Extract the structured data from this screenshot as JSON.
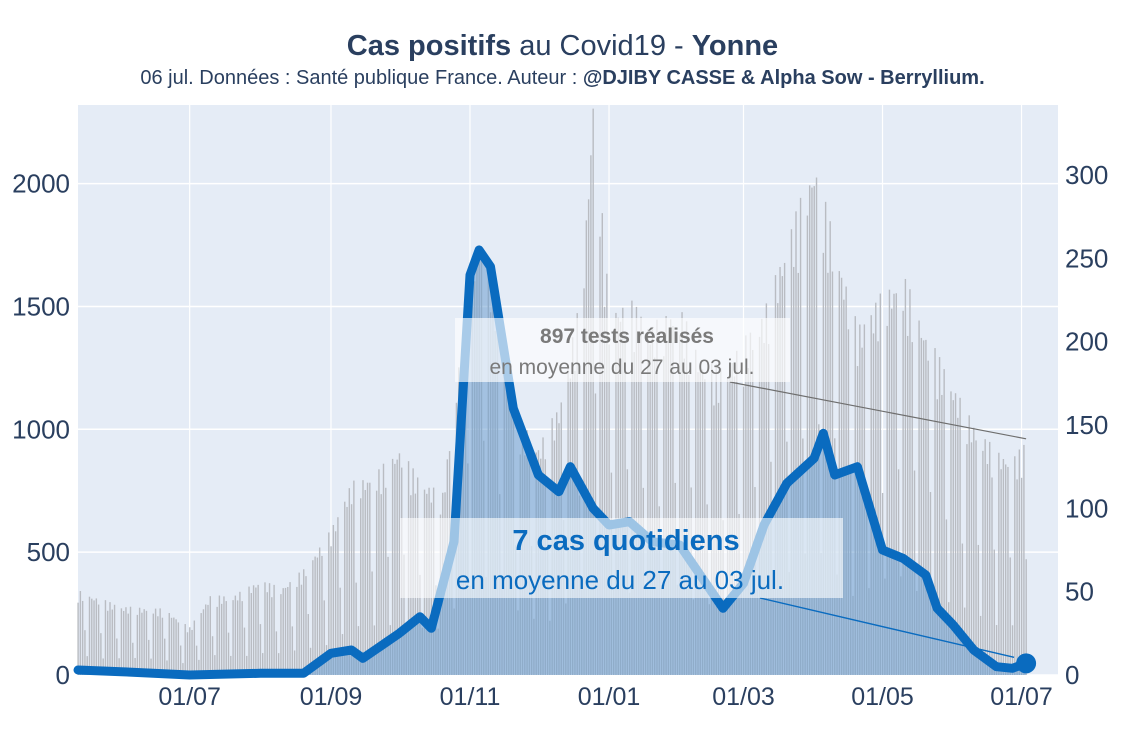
{
  "title": {
    "part1_bold": "Cas positifs",
    "part2": " au Covid19 - ",
    "part3_bold": "Yonne"
  },
  "subtitle": {
    "text": "06 jul. Données : Santé publique France. Auteur : ",
    "author_bold": "@DJIBY CASSE & Alpha Sow - Berryllium."
  },
  "annotations": {
    "tests_bold": "897 tests réalisés",
    "tests_sub": "en moyenne du 27 au 03 jul.",
    "cases_bold": "7 cas quotidiens",
    "cases_sub": "en moyenne du 27 au 03 jul."
  },
  "colors": {
    "plot_bg": "#e5ecf6",
    "cases_line": "#0a6bbf",
    "cases_fill": "#6e9fcf",
    "tests_bar": "#b9bcc2",
    "tests_annotation": "#7a7a7a",
    "text": "#2a3f5f"
  },
  "chart_data": {
    "type": "line",
    "x_tick_labels": [
      "01/07",
      "01/09",
      "01/11",
      "01/01",
      "01/03",
      "01/05",
      "01/07"
    ],
    "x_tick_dates": [
      "2020-07-01",
      "2020-09-01",
      "2020-11-01",
      "2021-01-01",
      "2021-03-01",
      "2021-05-01",
      "2021-07-01"
    ],
    "x_range": [
      "2020-05-13",
      "2021-07-17"
    ],
    "y_left_ticks": [
      0,
      500,
      1000,
      1500,
      2000
    ],
    "y_left_range": [
      0,
      2320
    ],
    "y_right_ticks": [
      0,
      50,
      100,
      150,
      200,
      250,
      300
    ],
    "y_right_range": [
      0,
      342
    ],
    "grid": true,
    "series": [
      {
        "axis": "left",
        "style": "bars",
        "points": [
          [
            "2020-05-13",
            320
          ],
          [
            "2020-06-01",
            260
          ],
          [
            "2020-06-20",
            250
          ],
          [
            "2020-07-01",
            180
          ],
          [
            "2020-07-10",
            300
          ],
          [
            "2020-07-20",
            300
          ],
          [
            "2020-08-01",
            360
          ],
          [
            "2020-08-10",
            330
          ],
          [
            "2020-08-20",
            400
          ],
          [
            "2020-09-01",
            550
          ],
          [
            "2020-09-10",
            730
          ],
          [
            "2020-09-20",
            760
          ],
          [
            "2020-10-01",
            860
          ],
          [
            "2020-10-10",
            740
          ],
          [
            "2020-10-20",
            690
          ],
          [
            "2020-11-01",
            1520
          ],
          [
            "2020-11-05",
            1700
          ],
          [
            "2020-11-12",
            1500
          ],
          [
            "2020-11-20",
            1000
          ],
          [
            "2020-12-01",
            870
          ],
          [
            "2020-12-10",
            1020
          ],
          [
            "2020-12-20",
            1450
          ],
          [
            "2020-12-25",
            2200
          ],
          [
            "2021-01-01",
            1400
          ],
          [
            "2021-01-10",
            1420
          ],
          [
            "2021-01-20",
            1330
          ],
          [
            "2021-02-01",
            1400
          ],
          [
            "2021-02-10",
            1200
          ],
          [
            "2021-02-20",
            1160
          ],
          [
            "2021-03-01",
            1270
          ],
          [
            "2021-03-10",
            1380
          ],
          [
            "2021-03-20",
            1650
          ],
          [
            "2021-04-01",
            1950
          ],
          [
            "2021-04-10",
            1650
          ],
          [
            "2021-04-20",
            1320
          ],
          [
            "2021-05-01",
            1450
          ],
          [
            "2021-05-10",
            1520
          ],
          [
            "2021-05-20",
            1300
          ],
          [
            "2021-06-01",
            1100
          ],
          [
            "2021-06-10",
            950
          ],
          [
            "2021-06-20",
            850
          ],
          [
            "2021-06-27",
            820
          ],
          [
            "2021-07-03",
            880
          ]
        ]
      },
      {
        "axis": "right",
        "style": "line-area",
        "points": [
          [
            "2020-05-13",
            3
          ],
          [
            "2020-06-01",
            2
          ],
          [
            "2020-07-01",
            0
          ],
          [
            "2020-08-01",
            1
          ],
          [
            "2020-08-20",
            1
          ],
          [
            "2020-09-01",
            13
          ],
          [
            "2020-09-10",
            15
          ],
          [
            "2020-09-15",
            10
          ],
          [
            "2020-10-01",
            25
          ],
          [
            "2020-10-10",
            35
          ],
          [
            "2020-10-15",
            28
          ],
          [
            "2020-10-25",
            80
          ],
          [
            "2020-11-01",
            240
          ],
          [
            "2020-11-05",
            255
          ],
          [
            "2020-11-10",
            245
          ],
          [
            "2020-11-20",
            160
          ],
          [
            "2020-12-01",
            120
          ],
          [
            "2020-12-10",
            110
          ],
          [
            "2020-12-15",
            125
          ],
          [
            "2020-12-25",
            100
          ],
          [
            "2021-01-01",
            90
          ],
          [
            "2021-01-10",
            92
          ],
          [
            "2021-01-20",
            80
          ],
          [
            "2021-02-01",
            78
          ],
          [
            "2021-02-10",
            60
          ],
          [
            "2021-02-20",
            40
          ],
          [
            "2021-03-01",
            55
          ],
          [
            "2021-03-10",
            90
          ],
          [
            "2021-03-20",
            115
          ],
          [
            "2021-04-01",
            130
          ],
          [
            "2021-04-05",
            145
          ],
          [
            "2021-04-10",
            120
          ],
          [
            "2021-04-20",
            125
          ],
          [
            "2021-05-01",
            75
          ],
          [
            "2021-05-10",
            70
          ],
          [
            "2021-05-20",
            60
          ],
          [
            "2021-05-25",
            40
          ],
          [
            "2021-06-01",
            30
          ],
          [
            "2021-06-10",
            15
          ],
          [
            "2021-06-20",
            5
          ],
          [
            "2021-06-27",
            4
          ],
          [
            "2021-07-03",
            7
          ]
        ]
      }
    ]
  }
}
